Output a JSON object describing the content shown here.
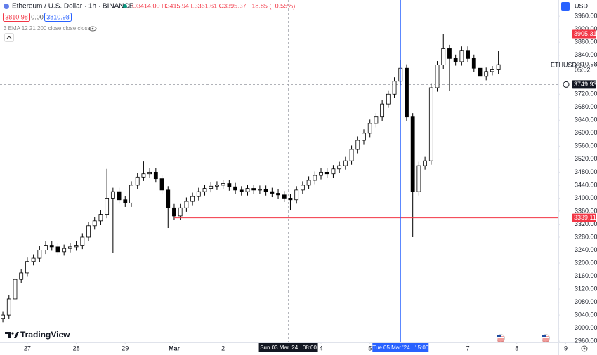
{
  "chart_data": {
    "type": "candlestick",
    "title": "Ethereum / U.S. Dollar · 1h · BINANCE",
    "legend_ohlc": "O3414.00 H3415.94 L3361.61 C3395.37 −18.85 (−0.55%)",
    "price_boxes": [
      "3810.98",
      "0.00",
      "3810.98"
    ],
    "indicator": "3 EMA 12 21 200 close close close",
    "currency": "USD",
    "brand": "TradingView",
    "symbol": "ETHUSD",
    "countdown": "05:02",
    "last_price": 3810.98,
    "xlim": [
      -13.4,
      260.4
    ],
    "ylim": [
      2956,
      4010
    ],
    "xticks": [
      {
        "value": 0,
        "label": "27"
      },
      {
        "value": 24,
        "label": "28"
      },
      {
        "value": 48,
        "label": "29"
      },
      {
        "value": 72,
        "label": "Mar"
      },
      {
        "value": 96,
        "label": "2"
      },
      {
        "value": 144,
        "label": "4"
      },
      {
        "value": 168,
        "label": "5"
      },
      {
        "value": 216,
        "label": "7"
      },
      {
        "value": 240,
        "label": "8"
      },
      {
        "value": 264,
        "label": "9"
      }
    ],
    "yticks": [
      {
        "value": 2960,
        "label": "2960.00"
      },
      {
        "value": 3000,
        "label": "3000.00"
      },
      {
        "value": 3040,
        "label": "3040.00"
      },
      {
        "value": 3080,
        "label": "3080.00"
      },
      {
        "value": 3120,
        "label": "3120.00"
      },
      {
        "value": 3160,
        "label": "3160.00"
      },
      {
        "value": 3200,
        "label": "3200.00"
      },
      {
        "value": 3240,
        "label": "3240.00"
      },
      {
        "value": 3280,
        "label": "3280.00"
      },
      {
        "value": 3320,
        "label": "3320.00"
      },
      {
        "value": 3360,
        "label": "3360.00"
      },
      {
        "value": 3400,
        "label": "3400.00"
      },
      {
        "value": 3440,
        "label": "3440.00"
      },
      {
        "value": 3480,
        "label": "3480.00"
      },
      {
        "value": 3520,
        "label": "3520.00"
      },
      {
        "value": 3560,
        "label": "3560.00"
      },
      {
        "value": 3600,
        "label": "3600.00"
      },
      {
        "value": 3640,
        "label": "3640.00"
      },
      {
        "value": 3680,
        "label": "3680.00"
      },
      {
        "value": 3720,
        "label": "3720.00"
      },
      {
        "value": 3840,
        "label": "3840.00"
      },
      {
        "value": 3880,
        "label": "3880.00"
      },
      {
        "value": 3920,
        "label": "3920.00"
      },
      {
        "value": 3960,
        "label": "3960.00"
      }
    ],
    "x": [
      -12,
      -9,
      -6,
      -3,
      0,
      3,
      6,
      9,
      12,
      15,
      18,
      21,
      24,
      27,
      30,
      33,
      36,
      39,
      42,
      45,
      48,
      51,
      54,
      57,
      60,
      63,
      66,
      69,
      72,
      75,
      78,
      81,
      84,
      87,
      90,
      93,
      96,
      99,
      102,
      105,
      108,
      111,
      114,
      117,
      120,
      123,
      126,
      129,
      132,
      135,
      138,
      141,
      144,
      147,
      150,
      153,
      156,
      159,
      162,
      165,
      168,
      171,
      174,
      177,
      180,
      183,
      186,
      189,
      192,
      195,
      198,
      201,
      204,
      207,
      210,
      213,
      216,
      219,
      222,
      225,
      228,
      231
    ],
    "open": [
      3030,
      3040,
      3090,
      3150,
      3170,
      3205,
      3215,
      3240,
      3255,
      3250,
      3235,
      3245,
      3250,
      3255,
      3280,
      3315,
      3330,
      3350,
      3400,
      3420,
      3395,
      3385,
      3440,
      3465,
      3475,
      3480,
      3460,
      3425,
      3370,
      3345,
      3370,
      3390,
      3405,
      3420,
      3430,
      3437,
      3440,
      3445,
      3435,
      3425,
      3420,
      3430,
      3425,
      3427,
      3420,
      3415,
      3410,
      3400,
      3395,
      3425,
      3440,
      3455,
      3470,
      3480,
      3475,
      3490,
      3500,
      3515,
      3550,
      3578,
      3600,
      3630,
      3650,
      3690,
      3720,
      3760,
      3800,
      3650,
      3420,
      3500,
      3515,
      3740,
      3810,
      3860,
      3830,
      3820,
      3855,
      3830,
      3800,
      3775,
      3790,
      3795
    ],
    "high": [
      3052,
      3102,
      3162,
      3182,
      3217,
      3227,
      3252,
      3267,
      3267,
      3262,
      3257,
      3262,
      3267,
      3292,
      3327,
      3342,
      3362,
      3490,
      3432,
      3432,
      3407,
      3452,
      3477,
      3513,
      3492,
      3492,
      3472,
      3437,
      3382,
      3382,
      3402,
      3417,
      3432,
      3442,
      3449,
      3452,
      3457,
      3457,
      3447,
      3437,
      3442,
      3442,
      3439,
      3439,
      3432,
      3427,
      3422,
      3412,
      3437,
      3452,
      3467,
      3482,
      3492,
      3492,
      3502,
      3512,
      3527,
      3562,
      3590,
      3612,
      3642,
      3662,
      3702,
      3732,
      3772,
      3825,
      3812,
      3662,
      3512,
      3527,
      3752,
      3822,
      3906,
      3872,
      3842,
      3867,
      3867,
      3842,
      3812,
      3802,
      3807,
      3854
    ],
    "low": [
      3018,
      3028,
      3078,
      3138,
      3158,
      3193,
      3203,
      3228,
      3238,
      3223,
      3223,
      3233,
      3238,
      3243,
      3268,
      3303,
      3318,
      3338,
      3232,
      3383,
      3373,
      3373,
      3428,
      3453,
      3463,
      3448,
      3413,
      3308,
      3333,
      3333,
      3358,
      3378,
      3393,
      3408,
      3418,
      3425,
      3428,
      3423,
      3413,
      3408,
      3408,
      3413,
      3413,
      3408,
      3403,
      3398,
      3388,
      3362,
      3383,
      3413,
      3428,
      3443,
      3458,
      3463,
      3463,
      3478,
      3488,
      3503,
      3538,
      3566,
      3588,
      3618,
      3638,
      3678,
      3708,
      3748,
      3638,
      3280,
      3408,
      3488,
      3503,
      3728,
      3798,
      3730,
      3808,
      3808,
      3818,
      3788,
      3763,
      3763,
      3778,
      3783
    ],
    "close": [
      3040,
      3090,
      3150,
      3170,
      3205,
      3215,
      3240,
      3255,
      3250,
      3235,
      3245,
      3250,
      3255,
      3280,
      3315,
      3330,
      3350,
      3400,
      3420,
      3395,
      3385,
      3440,
      3465,
      3475,
      3480,
      3460,
      3425,
      3370,
      3345,
      3370,
      3390,
      3405,
      3420,
      3430,
      3437,
      3440,
      3445,
      3435,
      3425,
      3420,
      3430,
      3425,
      3427,
      3420,
      3415,
      3410,
      3400,
      3395,
      3425,
      3440,
      3455,
      3470,
      3480,
      3475,
      3490,
      3500,
      3515,
      3550,
      3578,
      3600,
      3630,
      3650,
      3690,
      3720,
      3760,
      3800,
      3650,
      3420,
      3500,
      3515,
      3740,
      3810,
      3860,
      3830,
      3820,
      3855,
      3830,
      3800,
      3775,
      3790,
      3795,
      3810.98
    ],
    "price_lines": [
      {
        "value": 3905.31,
        "x": 205,
        "color": "#f23645"
      },
      {
        "value": 3339.11,
        "x": 72,
        "color": "#f23645"
      }
    ],
    "vline": {
      "x": 183,
      "label": "Tue 05 Mar '24   15:00",
      "color": "#2962ff"
    },
    "crosshair": {
      "x": 128,
      "y": 3749.93,
      "x_label": "Sun 03 Mar '24   08:00"
    }
  }
}
